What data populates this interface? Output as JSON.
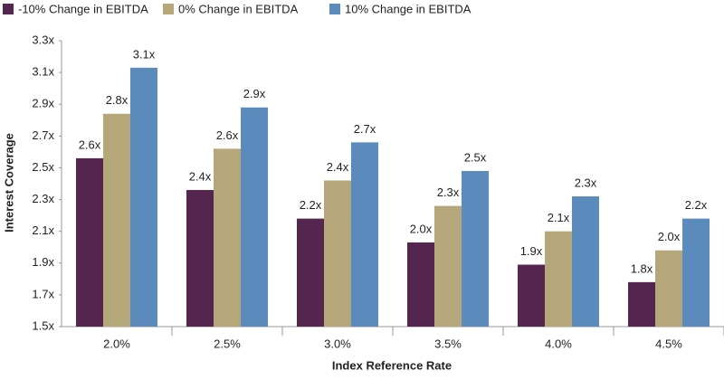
{
  "chart_data": {
    "type": "bar",
    "x_label": "Index Reference Rate",
    "y_label": "Interest Coverage",
    "categories": [
      "2.0%",
      "2.5%",
      "3.0%",
      "3.5%",
      "4.0%",
      "4.5%"
    ],
    "series": [
      {
        "name": "-10% Change in EBITDA",
        "color": "#54264f",
        "values": [
          2.56,
          2.36,
          2.18,
          2.03,
          1.89,
          1.78
        ],
        "value_labels": [
          "2.6x",
          "2.4x",
          "2.2x",
          "2.0x",
          "1.9x",
          "1.8x"
        ]
      },
      {
        "name": "0% Change in EBITDA",
        "color": "#b5a77a",
        "values": [
          2.84,
          2.62,
          2.42,
          2.26,
          2.1,
          1.98
        ],
        "value_labels": [
          "2.8x",
          "2.6x",
          "2.4x",
          "2.3x",
          "2.1x",
          "2.0x"
        ]
      },
      {
        "name": "10% Change in EBITDA",
        "color": "#5b8abd",
        "values": [
          3.13,
          2.88,
          2.66,
          2.48,
          2.32,
          2.18
        ],
        "value_labels": [
          "3.1x",
          "2.9x",
          "2.7x",
          "2.5x",
          "2.3x",
          "2.2x"
        ]
      }
    ],
    "ylim": [
      1.5,
      3.3
    ],
    "yticks": [
      {
        "value": 1.5,
        "label": "1.5x"
      },
      {
        "value": 1.7,
        "label": "1.7x"
      },
      {
        "value": 1.9,
        "label": "1.9x"
      },
      {
        "value": 2.1,
        "label": "2.1x"
      },
      {
        "value": 2.3,
        "label": "2.3x"
      },
      {
        "value": 2.5,
        "label": "2.5x"
      },
      {
        "value": 2.7,
        "label": "2.7x"
      },
      {
        "value": 2.9,
        "label": "2.9x"
      },
      {
        "value": 3.1,
        "label": "3.1x"
      },
      {
        "value": 3.3,
        "label": "3.3x"
      }
    ],
    "grid": false
  }
}
